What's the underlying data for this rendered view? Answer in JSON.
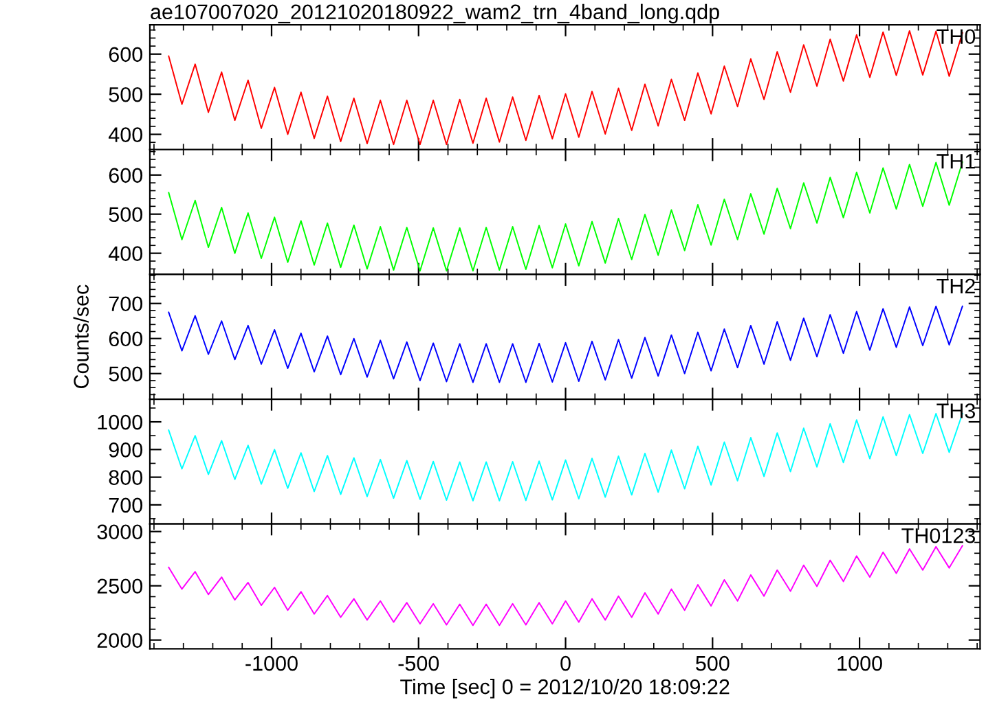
{
  "chart_data": [
    {
      "type": "line",
      "title": "ae107007020_20121020180922_wam2_trn_4band_long.qdp",
      "tick_labels": "y",
      "xlim": [
        -1414,
        1410
      ],
      "xticks": [
        -1000,
        -500,
        0,
        500,
        1000
      ],
      "ylim": [
        362,
        673
      ],
      "yticks": [
        400,
        500,
        600
      ],
      "x": [
        -1350,
        -1305,
        -1260,
        -1215,
        -1170,
        -1125,
        -1080,
        -1035,
        -990,
        -945,
        -900,
        -855,
        -810,
        -765,
        -720,
        -675,
        -630,
        -585,
        -540,
        -495,
        -450,
        -405,
        -360,
        -315,
        -270,
        -225,
        -180,
        -135,
        -90,
        -45,
        0,
        45,
        90,
        135,
        180,
        225,
        270,
        315,
        360,
        405,
        450,
        495,
        540,
        585,
        630,
        675,
        720,
        765,
        810,
        855,
        900,
        945,
        990,
        1035,
        1080,
        1125,
        1170,
        1215,
        1260,
        1305,
        1350
      ],
      "series": [
        {
          "name": "TH0",
          "color": "#ff0000",
          "values": [
            595,
            475,
            575,
            455,
            555,
            435,
            535,
            415,
            517,
            400,
            505,
            390,
            495,
            382,
            490,
            377,
            485,
            375,
            485,
            375,
            485,
            375,
            487,
            378,
            490,
            381,
            493,
            385,
            497,
            389,
            501,
            393,
            507,
            401,
            515,
            410,
            525,
            421,
            537,
            435,
            553,
            451,
            570,
            469,
            588,
            487,
            606,
            505,
            623,
            520,
            637,
            533,
            648,
            542,
            655,
            547,
            658,
            548,
            657,
            545,
            653
          ]
        }
      ]
    },
    {
      "type": "line",
      "tick_labels": "y",
      "xlim": [
        -1414,
        1410
      ],
      "xticks": [
        -1000,
        -500,
        0,
        500,
        1000
      ],
      "ylim": [
        346,
        665
      ],
      "yticks": [
        400,
        500,
        600
      ],
      "x": [
        -1350,
        -1305,
        -1260,
        -1215,
        -1170,
        -1125,
        -1080,
        -1035,
        -990,
        -945,
        -900,
        -855,
        -810,
        -765,
        -720,
        -675,
        -630,
        -585,
        -540,
        -495,
        -450,
        -405,
        -360,
        -315,
        -270,
        -225,
        -180,
        -135,
        -90,
        -45,
        0,
        45,
        90,
        135,
        180,
        225,
        270,
        315,
        360,
        405,
        450,
        495,
        540,
        585,
        630,
        675,
        720,
        765,
        810,
        855,
        900,
        945,
        990,
        1035,
        1080,
        1125,
        1170,
        1215,
        1260,
        1305,
        1350
      ],
      "series": [
        {
          "name": "TH1",
          "color": "#00ff00",
          "values": [
            555,
            435,
            535,
            415,
            517,
            400,
            503,
            387,
            492,
            377,
            483,
            370,
            477,
            364,
            472,
            360,
            468,
            357,
            466,
            355,
            465,
            355,
            465,
            355,
            466,
            357,
            468,
            359,
            471,
            363,
            475,
            368,
            481,
            375,
            489,
            384,
            499,
            395,
            511,
            407,
            524,
            421,
            538,
            435,
            552,
            449,
            566,
            463,
            580,
            477,
            594,
            491,
            607,
            503,
            618,
            513,
            627,
            520,
            632,
            523,
            633
          ]
        }
      ]
    },
    {
      "type": "line",
      "tick_labels": "y",
      "ylabel": "Counts/sec",
      "xlim": [
        -1414,
        1410
      ],
      "xticks": [
        -1000,
        -500,
        0,
        500,
        1000
      ],
      "ylim": [
        427,
        783
      ],
      "yticks": [
        500,
        600,
        700
      ],
      "x": [
        -1350,
        -1305,
        -1260,
        -1215,
        -1170,
        -1125,
        -1080,
        -1035,
        -990,
        -945,
        -900,
        -855,
        -810,
        -765,
        -720,
        -675,
        -630,
        -585,
        -540,
        -495,
        -450,
        -405,
        -360,
        -315,
        -270,
        -225,
        -180,
        -135,
        -90,
        -45,
        0,
        45,
        90,
        135,
        180,
        225,
        270,
        315,
        360,
        405,
        450,
        495,
        540,
        585,
        630,
        675,
        720,
        765,
        810,
        855,
        900,
        945,
        990,
        1035,
        1080,
        1125,
        1170,
        1215,
        1260,
        1305,
        1350
      ],
      "series": [
        {
          "name": "TH2",
          "color": "#0000ff",
          "values": [
            675,
            565,
            665,
            555,
            650,
            540,
            637,
            527,
            625,
            515,
            615,
            505,
            607,
            497,
            600,
            490,
            595,
            485,
            590,
            480,
            587,
            477,
            585,
            475,
            585,
            475,
            585,
            475,
            586,
            476,
            588,
            478,
            592,
            482,
            597,
            487,
            603,
            493,
            610,
            500,
            618,
            508,
            627,
            517,
            637,
            527,
            648,
            538,
            658,
            548,
            668,
            558,
            677,
            567,
            685,
            575,
            690,
            580,
            692,
            582,
            692
          ]
        }
      ]
    },
    {
      "type": "line",
      "tick_labels": "y",
      "xlim": [
        -1414,
        1410
      ],
      "xticks": [
        -1000,
        -500,
        0,
        500,
        1000
      ],
      "ylim": [
        631,
        1082
      ],
      "yticks": [
        700,
        800,
        900,
        1000
      ],
      "x": [
        -1350,
        -1305,
        -1260,
        -1215,
        -1170,
        -1125,
        -1080,
        -1035,
        -990,
        -945,
        -900,
        -855,
        -810,
        -765,
        -720,
        -675,
        -630,
        -585,
        -540,
        -495,
        -450,
        -405,
        -360,
        -315,
        -270,
        -225,
        -180,
        -135,
        -90,
        -45,
        0,
        45,
        90,
        135,
        180,
        225,
        270,
        315,
        360,
        405,
        450,
        495,
        540,
        585,
        630,
        675,
        720,
        765,
        810,
        855,
        900,
        945,
        990,
        1035,
        1080,
        1125,
        1170,
        1215,
        1260,
        1305,
        1350
      ],
      "series": [
        {
          "name": "TH3",
          "color": "#00ffff",
          "values": [
            970,
            830,
            950,
            810,
            932,
            792,
            915,
            775,
            900,
            760,
            888,
            748,
            878,
            738,
            870,
            730,
            864,
            724,
            860,
            720,
            857,
            717,
            855,
            715,
            855,
            715,
            856,
            716,
            858,
            718,
            862,
            722,
            868,
            728,
            876,
            736,
            886,
            746,
            898,
            758,
            912,
            772,
            927,
            787,
            943,
            803,
            960,
            820,
            977,
            837,
            993,
            853,
            1007,
            867,
            1018,
            878,
            1026,
            886,
            1030,
            890,
            1030
          ]
        }
      ]
    },
    {
      "type": "line",
      "xlabel": "Time [sec] 0 = 2012/10/20 18:09:22",
      "xlim": [
        -1414,
        1410
      ],
      "xticks": [
        -1000,
        -500,
        0,
        500,
        1000
      ],
      "ylim": [
        1920,
        3070
      ],
      "yticks": [
        2000,
        2500,
        3000
      ],
      "x": [
        -1350,
        -1305,
        -1260,
        -1215,
        -1170,
        -1125,
        -1080,
        -1035,
        -990,
        -945,
        -900,
        -855,
        -810,
        -765,
        -720,
        -675,
        -630,
        -585,
        -540,
        -495,
        -450,
        -405,
        -360,
        -315,
        -270,
        -225,
        -180,
        -135,
        -90,
        -45,
        0,
        45,
        90,
        135,
        180,
        225,
        270,
        315,
        360,
        405,
        450,
        495,
        540,
        585,
        630,
        675,
        720,
        765,
        810,
        855,
        900,
        945,
        990,
        1035,
        1080,
        1125,
        1170,
        1215,
        1260,
        1305,
        1350
      ],
      "series": [
        {
          "name": "TH0123",
          "color": "#ff00ff",
          "values": [
            2670,
            2470,
            2630,
            2420,
            2580,
            2370,
            2530,
            2320,
            2485,
            2275,
            2445,
            2240,
            2410,
            2210,
            2380,
            2185,
            2360,
            2165,
            2345,
            2150,
            2335,
            2140,
            2330,
            2135,
            2330,
            2135,
            2335,
            2140,
            2345,
            2150,
            2360,
            2165,
            2380,
            2185,
            2405,
            2210,
            2435,
            2240,
            2470,
            2275,
            2510,
            2315,
            2555,
            2360,
            2600,
            2405,
            2645,
            2450,
            2690,
            2495,
            2735,
            2540,
            2775,
            2580,
            2810,
            2615,
            2840,
            2645,
            2860,
            2665,
            2870
          ]
        }
      ]
    }
  ]
}
